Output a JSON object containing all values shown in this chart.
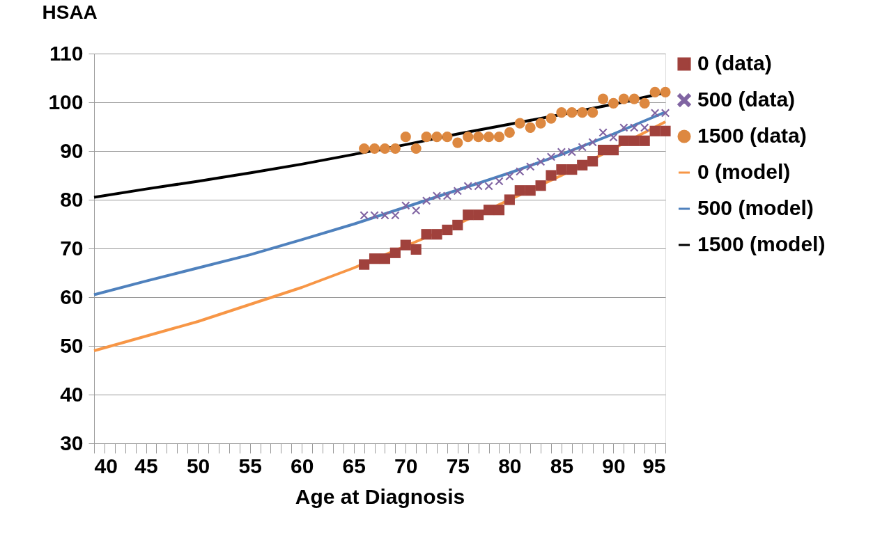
{
  "chart_data": {
    "type": "scatter",
    "xlabel": "Age at Diagnosis",
    "ylabel": "HSAA",
    "x": [
      66,
      67,
      68,
      69,
      70,
      71,
      72,
      73,
      74,
      75,
      76,
      77,
      78,
      79,
      80,
      81,
      82,
      83,
      84,
      85,
      86,
      87,
      88,
      89,
      90,
      91,
      92,
      93,
      94,
      95
    ],
    "xlim": [
      40,
      95
    ],
    "ylim": [
      30,
      110
    ],
    "yticks": [
      30,
      40,
      50,
      60,
      70,
      80,
      90,
      100,
      110
    ],
    "xticks": [
      40,
      {
        "value": 41,
        "label": null
      },
      {
        "value": 42,
        "label": null
      },
      {
        "value": 43,
        "label": null
      },
      {
        "value": 44,
        "label": null
      },
      45,
      {
        "value": 46,
        "label": null
      },
      {
        "value": 47,
        "label": null
      },
      {
        "value": 48,
        "label": null
      },
      {
        "value": 49,
        "label": null
      },
      50,
      {
        "value": 51,
        "label": null
      },
      {
        "value": 52,
        "label": null
      },
      {
        "value": 53,
        "label": null
      },
      {
        "value": 54,
        "label": null
      },
      55,
      {
        "value": 56,
        "label": null
      },
      {
        "value": 57,
        "label": null
      },
      {
        "value": 58,
        "label": null
      },
      {
        "value": 59,
        "label": null
      },
      60,
      {
        "value": 61,
        "label": null
      },
      {
        "value": 62,
        "label": null
      },
      {
        "value": 63,
        "label": null
      },
      {
        "value": 64,
        "label": null
      },
      65,
      {
        "value": 66,
        "label": null
      },
      {
        "value": 67,
        "label": null
      },
      {
        "value": 68,
        "label": null
      },
      {
        "value": 69,
        "label": null
      },
      70,
      {
        "value": 71,
        "label": null
      },
      {
        "value": 72,
        "label": null
      },
      {
        "value": 73,
        "label": null
      },
      {
        "value": 74,
        "label": null
      },
      75,
      {
        "value": 76,
        "label": null
      },
      {
        "value": 77,
        "label": null
      },
      {
        "value": 78,
        "label": null
      },
      {
        "value": 79,
        "label": null
      },
      80,
      {
        "value": 81,
        "label": null
      },
      {
        "value": 82,
        "label": null
      },
      {
        "value": 83,
        "label": null
      },
      {
        "value": 84,
        "label": null
      },
      85,
      {
        "value": 86,
        "label": null
      },
      {
        "value": 87,
        "label": null
      },
      {
        "value": 88,
        "label": null
      },
      {
        "value": 89,
        "label": null
      },
      90,
      {
        "value": 91,
        "label": null
      },
      {
        "value": 92,
        "label": null
      },
      {
        "value": 93,
        "label": null
      },
      {
        "value": 94,
        "label": null
      },
      95
    ],
    "grid": "y",
    "legend": "right",
    "series": [
      {
        "name": "0 (data)",
        "marker": "square",
        "color": "#a0413c",
        "values": [
          66.7,
          67.9,
          67.9,
          69.1,
          70.7,
          69.8,
          72.9,
          72.9,
          73.8,
          74.8,
          76.9,
          76.9,
          77.9,
          77.9,
          80,
          81.9,
          81.9,
          82.9,
          85,
          86.2,
          86.2,
          87.1,
          87.9,
          90.2,
          90.2,
          92.1,
          92.1,
          92.1,
          94.1,
          94.1
        ]
      },
      {
        "name": "500 (data)",
        "marker": "cross",
        "color": "#8064a2",
        "values": [
          76.8,
          76.8,
          76.8,
          76.8,
          78.8,
          77.8,
          79.8,
          80.8,
          80.8,
          81.8,
          82.8,
          82.8,
          82.8,
          83.8,
          84.8,
          85.8,
          86.8,
          87.8,
          88.8,
          89.8,
          89.8,
          90.8,
          91.8,
          93.8,
          92.8,
          94.8,
          94.8,
          94.8,
          97.8,
          97.8
        ]
      },
      {
        "name": "1500 (data)",
        "marker": "circle",
        "color": "#dd8840",
        "values": [
          90.5,
          90.5,
          90.5,
          90.5,
          92.9,
          90.5,
          92.9,
          92.9,
          92.9,
          91.7,
          92.9,
          92.9,
          92.9,
          92.9,
          93.8,
          95.7,
          94.8,
          95.7,
          96.7,
          97.9,
          97.9,
          97.9,
          97.9,
          100.7,
          99.8,
          100.7,
          100.7,
          99.8,
          102.1,
          102.1
        ]
      },
      {
        "name": "0 (model)",
        "type": "line",
        "marker": "none",
        "color": "#f79646",
        "x": [
          40,
          45,
          50,
          55,
          60,
          65,
          70,
          75,
          80,
          85,
          90,
          95
        ],
        "values": [
          49,
          52,
          55,
          58.5,
          62,
          66,
          70.5,
          75,
          80,
          85,
          90.5,
          96
        ]
      },
      {
        "name": "500 (model)",
        "type": "line",
        "marker": "none",
        "color": "#4f81bd",
        "x": [
          40,
          45,
          50,
          55,
          60,
          65,
          70,
          75,
          80,
          85,
          90,
          95
        ],
        "values": [
          60.5,
          63.3,
          66,
          68.7,
          71.8,
          75,
          78.5,
          82,
          85.5,
          89.3,
          93.5,
          98
        ]
      },
      {
        "name": "1500 (model)",
        "type": "line",
        "marker": "none",
        "color": "#000000",
        "x": [
          40,
          45,
          50,
          55,
          60,
          65,
          70,
          75,
          80,
          85,
          90,
          95
        ],
        "values": [
          80.5,
          82.2,
          83.8,
          85.5,
          87.3,
          89.3,
          91.3,
          93.5,
          95.5,
          97.5,
          99.6,
          102
        ]
      }
    ]
  }
}
